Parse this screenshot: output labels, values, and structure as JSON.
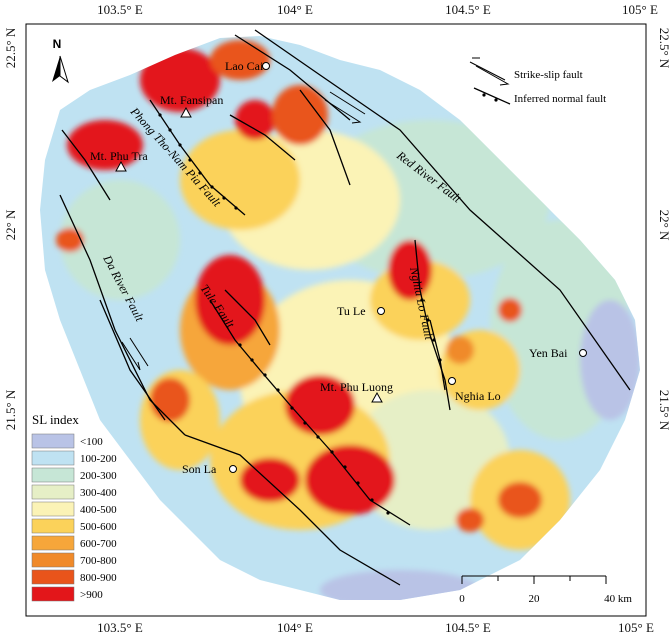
{
  "axes": {
    "top": [
      "103.5° E",
      "104° E",
      "104.5° E",
      "105° E"
    ],
    "bottom": [
      "103.5° E",
      "104° E",
      "104.5° E",
      "105° E"
    ],
    "left": [
      "22.5° N",
      "22° N",
      "21.5° N"
    ],
    "right": [
      "22.5° N",
      "22° N",
      "21.5° N"
    ]
  },
  "north": "N",
  "places": {
    "lao_cai": "Lao Cai",
    "fansipan": "Mt. Fansipan",
    "phu_tra": "Mt. Phu Tra",
    "tu_le": "Tu Le",
    "phu_luong": "Mt. Phu Luong",
    "nghia_lo": "Nghia Lo",
    "yen_bai": "Yen Bai",
    "son_la": "Son La"
  },
  "faults": {
    "red_river": "Red River Fault",
    "phong_tho": "Phong Tho-Nam Pia Fault",
    "da_river": "Da River Fault",
    "tule": "Tule Fault",
    "nghia_lo": "Nghia Lo Fault"
  },
  "fault_legend": {
    "strike_slip": "Strike-slip fault",
    "normal": "Inferred normal fault"
  },
  "legend": {
    "title": "SL index",
    "classes": [
      {
        "label": "<100",
        "color": "#b9c3e6"
      },
      {
        "label": "100-200",
        "color": "#bfe2f2"
      },
      {
        "label": "200-300",
        "color": "#c6e6d6"
      },
      {
        "label": "300-400",
        "color": "#e6efc6"
      },
      {
        "label": "400-500",
        "color": "#fbf3b6"
      },
      {
        "label": "500-600",
        "color": "#fbd25a"
      },
      {
        "label": "600-700",
        "color": "#f6a63a"
      },
      {
        "label": "700-800",
        "color": "#f08a2a"
      },
      {
        "label": "800-900",
        "color": "#e9541b"
      },
      {
        "label": ">900",
        "color": "#e3161a"
      }
    ]
  },
  "scalebar": {
    "ticks": [
      "0",
      "20",
      "40 km"
    ]
  }
}
